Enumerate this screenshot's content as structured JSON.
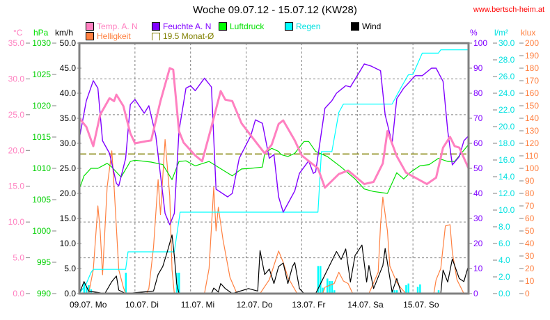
{
  "header": {
    "title": "Woche 09.07.12 - 15.07.12 (KW28)",
    "site": "www.bertsch-heim.at"
  },
  "colors": {
    "temp": "#ff80c0",
    "humidity": "#8000ff",
    "pressure": "#00e000",
    "rain": "#00ffff",
    "wind": "#000000",
    "brightness": "#ff8040",
    "monthavg": "#808000",
    "grid": "#808080"
  },
  "chart_data": {
    "type": "line",
    "title": "Woche 09.07.12 - 15.07.12 (KW28)",
    "x_unit": "hours since 09.07. 00:00",
    "xlim": [
      0,
      168
    ],
    "x_tick_labels": [
      "09.07. Mo",
      "10.07. Di",
      "11.07. Mi",
      "12.07. Do",
      "13.07. Fr",
      "14.07. Sa",
      "15.07. So"
    ],
    "grid": true,
    "legend": [
      {
        "key": "temp",
        "label": "Temp. A. N"
      },
      {
        "key": "humidity",
        "label": "Feuchte A. N"
      },
      {
        "key": "pressure",
        "label": "Luftdruck"
      },
      {
        "key": "rain",
        "label": "Regen"
      },
      {
        "key": "wind",
        "label": "Wind"
      },
      {
        "key": "brightness",
        "label": "Helligkeit"
      },
      {
        "key": "monthavg",
        "label": "19.5 Monat-Ø"
      }
    ],
    "axes": {
      "temp": {
        "unit": "°C",
        "min": 0,
        "max": 35,
        "ticks": [
          "0.0",
          "5.0",
          "10.0",
          "15.0",
          "20.0",
          "25.0",
          "30.0",
          "35.0"
        ]
      },
      "pressure": {
        "unit": "hPa",
        "min": 990,
        "max": 1030,
        "ticks": [
          "990",
          "995",
          "1000",
          "1005",
          "1010",
          "1015",
          "1020",
          "1025",
          "1030"
        ]
      },
      "wind": {
        "unit": "km/h",
        "min": 0,
        "max": 50,
        "ticks": [
          "0.0",
          "5.0",
          "10.0",
          "15.0",
          "20.0",
          "25.0",
          "30.0",
          "35.0",
          "40.0",
          "45.0",
          "50.0"
        ]
      },
      "humidity": {
        "unit": "%",
        "min": 0,
        "max": 100,
        "ticks": [
          "0",
          "10",
          "20",
          "30",
          "40",
          "50",
          "60",
          "70",
          "80",
          "90",
          "100"
        ]
      },
      "rain": {
        "unit": "l/m²",
        "min": 0,
        "max": 30,
        "ticks": [
          "0.0",
          "2.0",
          "4.0",
          "6.0",
          "8.0",
          "10.0",
          "12.0",
          "14.0",
          "16.0",
          "18.0",
          "20.0",
          "22.0",
          "24.0",
          "26.0",
          "28.0",
          "30.0"
        ]
      },
      "brightness": {
        "unit": "klux",
        "min": 0,
        "max": 200,
        "ticks": [
          "0",
          "10",
          "20",
          "30",
          "40",
          "50",
          "60",
          "70",
          "80",
          "90",
          "100",
          "110",
          "120",
          "130",
          "140",
          "150",
          "160",
          "170",
          "180",
          "190",
          "200"
        ]
      }
    },
    "month_avg_temp": 19.5,
    "series": {
      "brightness": [
        [
          0,
          0
        ],
        [
          4,
          0
        ],
        [
          6,
          19
        ],
        [
          8,
          70
        ],
        [
          9,
          50
        ],
        [
          10,
          15
        ],
        [
          12,
          85
        ],
        [
          14,
          114
        ],
        [
          15,
          85
        ],
        [
          17,
          19
        ],
        [
          19,
          5
        ],
        [
          20,
          0
        ],
        [
          29,
          0
        ],
        [
          30,
          4
        ],
        [
          32,
          37
        ],
        [
          34,
          91
        ],
        [
          35,
          63
        ],
        [
          37,
          123
        ],
        [
          39,
          78
        ],
        [
          40,
          19
        ],
        [
          41,
          0
        ],
        [
          54,
          0
        ],
        [
          56,
          20
        ],
        [
          58,
          85
        ],
        [
          59,
          50
        ],
        [
          60,
          69
        ],
        [
          62,
          43
        ],
        [
          65,
          13
        ],
        [
          68,
          0
        ],
        [
          78,
          0
        ],
        [
          82,
          11
        ],
        [
          86,
          34
        ],
        [
          88,
          25
        ],
        [
          90,
          13
        ],
        [
          94,
          0
        ],
        [
          105,
          0
        ],
        [
          106,
          5
        ],
        [
          110,
          8
        ],
        [
          112,
          17
        ],
        [
          114,
          10
        ],
        [
          116,
          8
        ],
        [
          118,
          0
        ],
        [
          125,
          0
        ],
        [
          129,
          17
        ],
        [
          130,
          55
        ],
        [
          131,
          77
        ],
        [
          133,
          50
        ],
        [
          134,
          22
        ],
        [
          137,
          9
        ],
        [
          139,
          4
        ],
        [
          141,
          0
        ],
        [
          153,
          0
        ],
        [
          154,
          11
        ],
        [
          156,
          20
        ],
        [
          158,
          54
        ],
        [
          160,
          55
        ],
        [
          161,
          33
        ],
        [
          163,
          11
        ],
        [
          166,
          0
        ],
        [
          168,
          0
        ]
      ],
      "rain_total": [
        [
          0,
          0
        ],
        [
          3,
          1.2
        ],
        [
          5,
          2.5
        ],
        [
          6,
          2.9
        ],
        [
          20,
          2.9
        ],
        [
          21,
          5
        ],
        [
          41,
          5
        ],
        [
          43.5,
          9.75
        ],
        [
          103,
          9.75
        ],
        [
          104.5,
          17
        ],
        [
          109,
          17
        ],
        [
          112,
          21.7
        ],
        [
          114,
          22.7
        ],
        [
          135,
          22.7
        ],
        [
          139,
          24.75
        ],
        [
          142,
          26.2
        ],
        [
          144,
          26.25
        ],
        [
          148,
          28.8
        ],
        [
          155,
          28.8
        ],
        [
          156,
          29.2
        ],
        [
          168,
          29.2
        ]
      ],
      "rain_bars": [
        [
          2,
          1.3
        ],
        [
          3,
          0.8
        ],
        [
          4,
          1.0
        ],
        [
          5,
          0.5
        ],
        [
          20,
          2.5
        ],
        [
          42,
          2.5
        ],
        [
          43,
          2.5
        ],
        [
          103,
          3.3
        ],
        [
          104,
          3.3
        ],
        [
          105,
          0.7
        ],
        [
          107,
          1.8
        ],
        [
          108,
          1.5
        ],
        [
          109,
          1.5
        ],
        [
          110,
          0.4
        ],
        [
          135,
          0.4
        ],
        [
          136,
          0.4
        ],
        [
          137,
          0.4
        ],
        [
          141,
          1.0
        ],
        [
          142,
          1.2
        ],
        [
          146,
          0.8
        ],
        [
          147,
          1.1
        ],
        [
          155,
          0.4
        ]
      ],
      "pressure": [
        [
          0,
          1006.7
        ],
        [
          2,
          1008.8
        ],
        [
          5,
          1010
        ],
        [
          8,
          1010
        ],
        [
          12,
          1010.8
        ],
        [
          14,
          1010.2
        ],
        [
          16,
          1009.4
        ],
        [
          18,
          1008.6
        ],
        [
          22,
          1011.1
        ],
        [
          24,
          1011.3
        ],
        [
          31,
          1011
        ],
        [
          36,
          1010.6
        ],
        [
          40,
          1008.2
        ],
        [
          43,
          1011.1
        ],
        [
          46,
          1011.2
        ],
        [
          50,
          1010.4
        ],
        [
          56,
          1011.1
        ],
        [
          59,
          1010.4
        ],
        [
          66,
          1008.8
        ],
        [
          70,
          1009.9
        ],
        [
          74,
          1010
        ],
        [
          79,
          1010.2
        ],
        [
          80,
          1012.4
        ],
        [
          83,
          1013.2
        ],
        [
          86,
          1012.7
        ],
        [
          87,
          1012.2
        ],
        [
          90,
          1011.9
        ],
        [
          93,
          1012.4
        ],
        [
          97,
          1014.3
        ],
        [
          99,
          1014.3
        ],
        [
          102,
          1012.7
        ],
        [
          107,
          1011.9
        ],
        [
          113,
          1010.2
        ],
        [
          119,
          1008.3
        ],
        [
          123,
          1006.7
        ],
        [
          127,
          1006.3
        ],
        [
          133,
          1006
        ],
        [
          137,
          1009.3
        ],
        [
          140,
          1008.3
        ],
        [
          143,
          1009.4
        ],
        [
          147,
          1010.4
        ],
        [
          151,
          1010.6
        ],
        [
          155,
          1011.6
        ],
        [
          159,
          1011.1
        ],
        [
          162,
          1011.1
        ],
        [
          168,
          1013.8
        ]
      ],
      "humidity": [
        [
          0,
          62
        ],
        [
          3,
          77
        ],
        [
          6,
          85
        ],
        [
          8,
          82
        ],
        [
          10,
          61
        ],
        [
          13,
          56
        ],
        [
          16,
          44
        ],
        [
          17,
          43
        ],
        [
          20,
          54
        ],
        [
          22,
          75.5
        ],
        [
          24,
          77.5
        ],
        [
          28,
          72
        ],
        [
          30,
          75
        ],
        [
          33,
          63
        ],
        [
          37,
          32
        ],
        [
          39,
          27.5
        ],
        [
          41,
          32
        ],
        [
          43,
          65
        ],
        [
          46,
          82
        ],
        [
          48,
          83
        ],
        [
          50,
          81
        ],
        [
          54,
          86
        ],
        [
          57,
          82.5
        ],
        [
          59,
          41.7
        ],
        [
          64,
          38.6
        ],
        [
          66,
          40
        ],
        [
          69,
          54
        ],
        [
          74,
          63
        ],
        [
          76,
          69.4
        ],
        [
          79,
          68
        ],
        [
          82,
          54
        ],
        [
          84,
          55.5
        ],
        [
          86,
          38.6
        ],
        [
          88,
          32.5
        ],
        [
          93,
          41
        ],
        [
          95,
          48
        ],
        [
          99,
          53
        ],
        [
          101,
          48
        ],
        [
          102,
          48.6
        ],
        [
          106,
          74
        ],
        [
          109,
          77
        ],
        [
          111,
          80
        ],
        [
          115,
          83
        ],
        [
          117,
          82.5
        ],
        [
          123,
          91.7
        ],
        [
          126,
          90.8
        ],
        [
          130,
          89
        ],
        [
          132,
          71.4
        ],
        [
          135,
          60
        ],
        [
          137,
          77.8
        ],
        [
          140,
          82
        ],
        [
          145,
          87
        ],
        [
          148,
          87
        ],
        [
          152,
          90
        ],
        [
          154,
          90
        ],
        [
          157,
          84.7
        ],
        [
          159,
          65
        ],
        [
          161,
          51.4
        ],
        [
          164,
          54.7
        ],
        [
          166,
          61
        ],
        [
          168,
          63
        ]
      ],
      "wind": [
        [
          0,
          0
        ],
        [
          2,
          2.4
        ],
        [
          4,
          0.5
        ],
        [
          11,
          0
        ],
        [
          14,
          2.4
        ],
        [
          16,
          3.5
        ],
        [
          17,
          0.7
        ],
        [
          20,
          0
        ],
        [
          32,
          0.5
        ],
        [
          34,
          3.8
        ],
        [
          36,
          5.4
        ],
        [
          38,
          8.4
        ],
        [
          40,
          11.7
        ],
        [
          41,
          7.5
        ],
        [
          42,
          2
        ],
        [
          43,
          0
        ],
        [
          57,
          0
        ],
        [
          58,
          1.1
        ],
        [
          60,
          0.3
        ],
        [
          61,
          2
        ],
        [
          63,
          1
        ],
        [
          66,
          0
        ],
        [
          73,
          1
        ],
        [
          77,
          0.5
        ],
        [
          78,
          8.6
        ],
        [
          80,
          3.8
        ],
        [
          82,
          4.9
        ],
        [
          84,
          2
        ],
        [
          86,
          5.4
        ],
        [
          88,
          6.1
        ],
        [
          90,
          2
        ],
        [
          92,
          5.4
        ],
        [
          93,
          6.2
        ],
        [
          95,
          1
        ],
        [
          97,
          0
        ],
        [
          102,
          0
        ],
        [
          105,
          2.8
        ],
        [
          111,
          8.4
        ],
        [
          113,
          6.8
        ],
        [
          115,
          8.9
        ],
        [
          117,
          2.3
        ],
        [
          119,
          7.6
        ],
        [
          122,
          9.7
        ],
        [
          124,
          2.3
        ],
        [
          125,
          5.6
        ],
        [
          127,
          1
        ],
        [
          131,
          5.6
        ],
        [
          132,
          9
        ],
        [
          135,
          0.3
        ],
        [
          137,
          3
        ],
        [
          139,
          0
        ],
        [
          156,
          0
        ],
        [
          157,
          4.7
        ],
        [
          159,
          2.3
        ],
        [
          161,
          6.9
        ],
        [
          164,
          3
        ],
        [
          166,
          2.4
        ],
        [
          168,
          5.6
        ]
      ],
      "temp": [
        [
          0,
          24.5
        ],
        [
          3,
          23.3
        ],
        [
          6,
          20.6
        ],
        [
          9,
          25
        ],
        [
          13,
          27.3
        ],
        [
          15,
          26.9
        ],
        [
          16,
          27.8
        ],
        [
          19,
          26.2
        ],
        [
          22,
          22.4
        ],
        [
          24,
          21
        ],
        [
          29,
          21.3
        ],
        [
          31,
          21.4
        ],
        [
          35,
          26.9
        ],
        [
          39,
          31.5
        ],
        [
          40.5,
          31.3
        ],
        [
          43,
          22.7
        ],
        [
          45,
          21.1
        ],
        [
          50,
          19.3
        ],
        [
          53,
          18.5
        ],
        [
          57,
          23.3
        ],
        [
          61,
          28.3
        ],
        [
          63,
          27.1
        ],
        [
          66,
          26.9
        ],
        [
          70,
          23.8
        ],
        [
          74,
          22.1
        ],
        [
          80,
          19.6
        ],
        [
          83,
          20.8
        ],
        [
          86,
          23.7
        ],
        [
          88,
          24.2
        ],
        [
          93,
          21.4
        ],
        [
          96,
          19.3
        ],
        [
          103,
          17.5
        ],
        [
          106,
          14.8
        ],
        [
          112,
          16.7
        ],
        [
          116,
          17.2
        ],
        [
          123,
          15.3
        ],
        [
          127,
          15.6
        ],
        [
          131,
          18.2
        ],
        [
          133,
          22.7
        ],
        [
          137,
          19.2
        ],
        [
          141,
          16.9
        ],
        [
          145,
          16.2
        ],
        [
          150,
          15.3
        ],
        [
          154,
          16.2
        ],
        [
          157,
          20.4
        ],
        [
          160,
          21.9
        ],
        [
          162,
          20.6
        ],
        [
          164,
          20.4
        ],
        [
          168,
          17.5
        ]
      ]
    }
  }
}
